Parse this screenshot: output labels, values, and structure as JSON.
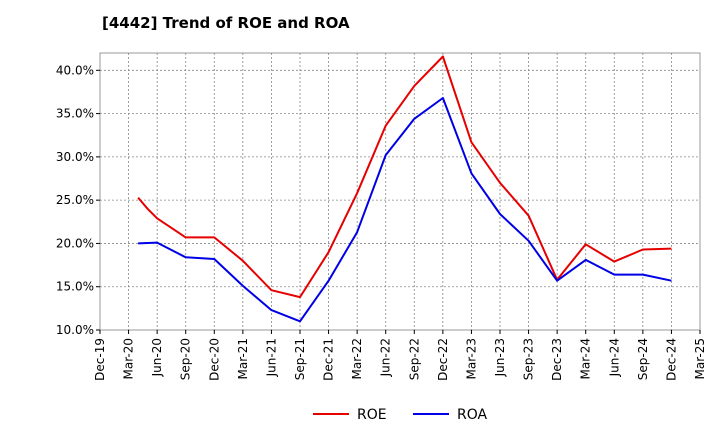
{
  "chart_data": {
    "type": "line",
    "title": "[4442]  Trend of ROE and ROA",
    "x_ticks": [
      "Dec-19",
      "Mar-20",
      "Jun-20",
      "Sep-20",
      "Dec-20",
      "Mar-21",
      "Jun-21",
      "Sep-21",
      "Dec-21",
      "Mar-22",
      "Jun-22",
      "Sep-22",
      "Dec-22",
      "Mar-23",
      "Jun-23",
      "Sep-23",
      "Dec-23",
      "Mar-24",
      "Jun-24",
      "Sep-24",
      "Dec-24",
      "Mar-25"
    ],
    "y_ticks": [
      "10.0%",
      "15.0%",
      "20.0%",
      "25.0%",
      "30.0%",
      "35.0%",
      "40.0%"
    ],
    "ylim": [
      10,
      42
    ],
    "grid": true,
    "legend_position": "bottom-center",
    "series": [
      {
        "name": "ROE",
        "color": "#e60000",
        "points": [
          [
            "Apr-20",
            25.3
          ],
          [
            "May-20",
            24.0
          ],
          [
            "Jun-20",
            22.9
          ],
          [
            "Sep-20",
            20.7
          ],
          [
            "Dec-20",
            20.7
          ],
          [
            "Mar-21",
            18.0
          ],
          [
            "Jun-21",
            14.6
          ],
          [
            "Sep-21",
            13.8
          ],
          [
            "Dec-21",
            19.0
          ],
          [
            "Mar-22",
            25.8
          ],
          [
            "Jun-22",
            33.6
          ],
          [
            "Sep-22",
            38.2
          ],
          [
            "Dec-22",
            41.6
          ],
          [
            "Mar-23",
            31.7
          ],
          [
            "Jun-23",
            27.0
          ],
          [
            "Sep-23",
            23.2
          ],
          [
            "Dec-23",
            15.8
          ],
          [
            "Mar-24",
            19.9
          ],
          [
            "Jun-24",
            17.9
          ],
          [
            "Sep-24",
            19.3
          ],
          [
            "Dec-24",
            19.4
          ]
        ]
      },
      {
        "name": "ROA",
        "color": "#0000e6",
        "points": [
          [
            "Apr-20",
            20.0
          ],
          [
            "Jun-20",
            20.1
          ],
          [
            "Sep-20",
            18.4
          ],
          [
            "Dec-20",
            18.2
          ],
          [
            "Mar-21",
            15.1
          ],
          [
            "Jun-21",
            12.3
          ],
          [
            "Sep-21",
            11.0
          ],
          [
            "Dec-21",
            15.7
          ],
          [
            "Mar-22",
            21.3
          ],
          [
            "Jun-22",
            30.2
          ],
          [
            "Sep-22",
            34.4
          ],
          [
            "Dec-22",
            36.8
          ],
          [
            "Mar-23",
            28.1
          ],
          [
            "Jun-23",
            23.4
          ],
          [
            "Sep-23",
            20.3
          ],
          [
            "Dec-23",
            15.7
          ],
          [
            "Mar-24",
            18.1
          ],
          [
            "Jun-24",
            16.4
          ],
          [
            "Sep-24",
            16.4
          ],
          [
            "Dec-24",
            15.7
          ]
        ]
      }
    ]
  }
}
